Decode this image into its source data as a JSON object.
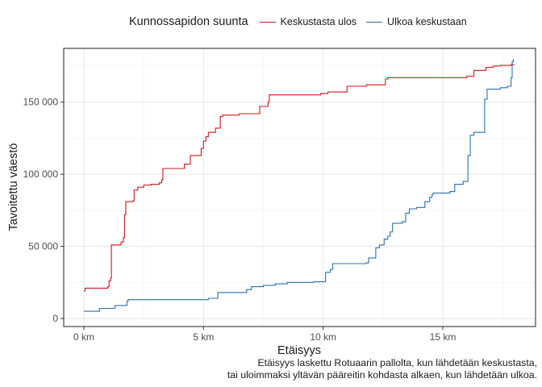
{
  "chart_data": {
    "type": "line",
    "step": true,
    "xlabel": "Etäisyys",
    "ylabel": "Tavoitettu väestö",
    "xlim": [
      0,
      18
    ],
    "ylim": [
      0,
      182000
    ],
    "x_ticks": [
      0,
      5,
      10,
      15
    ],
    "x_tick_labels": [
      "0 km",
      "5 km",
      "10 km",
      "15 km"
    ],
    "y_ticks": [
      0,
      50000,
      100000,
      150000
    ],
    "y_tick_labels": [
      "0",
      "50 000",
      "100 000",
      "150 000"
    ],
    "grid": true,
    "legend": {
      "title": "Kunnossapidon suunta",
      "position": "top"
    },
    "caption": [
      "Etäisyys laskettu Rotuaarin pallolta, kun lähdetään keskustasta,",
      "tai uloimmaksi yltävän pääreitin kohdasta alkaen, kun lähdetään ulkoa."
    ],
    "series": [
      {
        "name": "Keskustasta ulos",
        "color": "#cb181d",
        "points": [
          [
            0.0,
            19000
          ],
          [
            0.05,
            21000
          ],
          [
            1.0,
            22000
          ],
          [
            1.05,
            26000
          ],
          [
            1.12,
            28000
          ],
          [
            1.15,
            51000
          ],
          [
            1.55,
            53000
          ],
          [
            1.65,
            56000
          ],
          [
            1.7,
            72000
          ],
          [
            1.75,
            81000
          ],
          [
            2.05,
            81500
          ],
          [
            2.1,
            89000
          ],
          [
            2.25,
            91000
          ],
          [
            2.5,
            92500
          ],
          [
            2.8,
            93000
          ],
          [
            3.15,
            94000
          ],
          [
            3.25,
            96000
          ],
          [
            3.3,
            104000
          ],
          [
            4.2,
            107000
          ],
          [
            4.45,
            113000
          ],
          [
            4.9,
            118000
          ],
          [
            5.0,
            123000
          ],
          [
            5.1,
            126000
          ],
          [
            5.2,
            129000
          ],
          [
            5.5,
            132000
          ],
          [
            5.7,
            140000
          ],
          [
            5.8,
            141000
          ],
          [
            6.5,
            142000
          ],
          [
            7.35,
            147000
          ],
          [
            7.7,
            150000
          ],
          [
            7.75,
            155000
          ],
          [
            9.9,
            156000
          ],
          [
            10.2,
            157000
          ],
          [
            11.0,
            161000
          ],
          [
            11.8,
            162000
          ],
          [
            12.6,
            166000
          ],
          [
            12.7,
            167000
          ],
          [
            16.0,
            168000
          ],
          [
            16.3,
            172000
          ],
          [
            16.8,
            174000
          ],
          [
            17.1,
            175000
          ],
          [
            17.4,
            175500
          ],
          [
            17.85,
            176000
          ],
          [
            18.0,
            176000
          ]
        ]
      },
      {
        "name": "Ulkoa keskustaan",
        "color": "#2c6fab",
        "points": [
          [
            0.0,
            5000
          ],
          [
            0.65,
            7000
          ],
          [
            1.3,
            9000
          ],
          [
            1.8,
            12000
          ],
          [
            1.85,
            13000
          ],
          [
            5.2,
            14000
          ],
          [
            5.6,
            18000
          ],
          [
            6.8,
            20000
          ],
          [
            7.0,
            22000
          ],
          [
            7.5,
            23000
          ],
          [
            8.0,
            24000
          ],
          [
            8.5,
            25000
          ],
          [
            9.6,
            25500
          ],
          [
            10.1,
            32000
          ],
          [
            10.3,
            34000
          ],
          [
            10.4,
            38000
          ],
          [
            11.8,
            38500
          ],
          [
            11.9,
            42000
          ],
          [
            12.2,
            49000
          ],
          [
            12.35,
            51000
          ],
          [
            12.55,
            55000
          ],
          [
            12.7,
            57000
          ],
          [
            12.8,
            60000
          ],
          [
            12.9,
            66000
          ],
          [
            13.3,
            67000
          ],
          [
            13.45,
            73000
          ],
          [
            13.6,
            76000
          ],
          [
            13.9,
            77000
          ],
          [
            14.25,
            81000
          ],
          [
            14.45,
            84000
          ],
          [
            14.55,
            86000
          ],
          [
            14.6,
            87000
          ],
          [
            15.3,
            88000
          ],
          [
            15.5,
            93000
          ],
          [
            15.85,
            95000
          ],
          [
            16.05,
            113000
          ],
          [
            16.15,
            127000
          ],
          [
            16.3,
            129000
          ],
          [
            16.75,
            152000
          ],
          [
            16.85,
            159000
          ],
          [
            17.4,
            160000
          ],
          [
            17.7,
            161000
          ],
          [
            17.85,
            167000
          ],
          [
            17.9,
            178000
          ],
          [
            17.95,
            180000
          ]
        ]
      }
    ]
  }
}
